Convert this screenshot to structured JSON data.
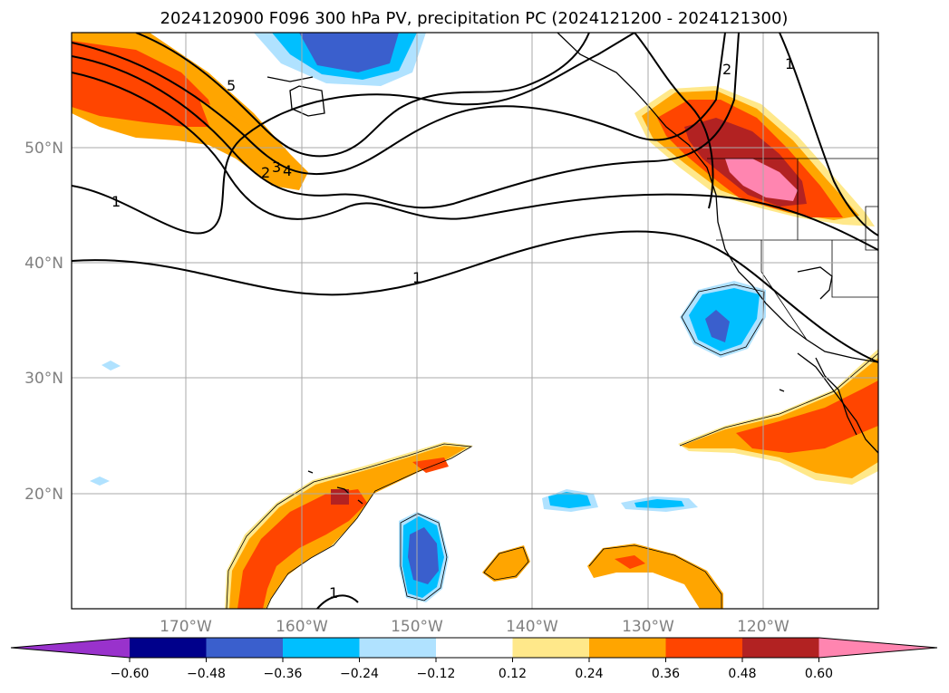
{
  "title": "2024120900 F096 300 hPa PV, precipitation PC (2024121200 - 2024121300)",
  "lat_ticks": [
    "50°N",
    "40°N",
    "30°N",
    "20°N"
  ],
  "lon_ticks": [
    "170°W",
    "160°W",
    "150°W",
    "140°W",
    "130°W",
    "120°W"
  ],
  "colorbar": {
    "tick_labels": [
      "−0.60",
      "−0.48",
      "−0.36",
      "−0.24",
      "−0.12",
      "0.12",
      "0.24",
      "0.36",
      "0.48",
      "0.60"
    ],
    "colors": [
      "#9932cc",
      "#00008b",
      "#3a5fcd",
      "#00bfff",
      "#b0e2ff",
      "#ffffff",
      "#ffe88a",
      "#ffa500",
      "#ff4500",
      "#b22222",
      "#ff85b0"
    ]
  },
  "contour_labels": [
    "1",
    "1",
    "1",
    "2",
    "1",
    "2",
    "3",
    "4",
    "5"
  ],
  "map": {
    "lon_range": [
      -180,
      -110
    ],
    "lat_range": [
      10,
      60
    ],
    "grid": true
  }
}
